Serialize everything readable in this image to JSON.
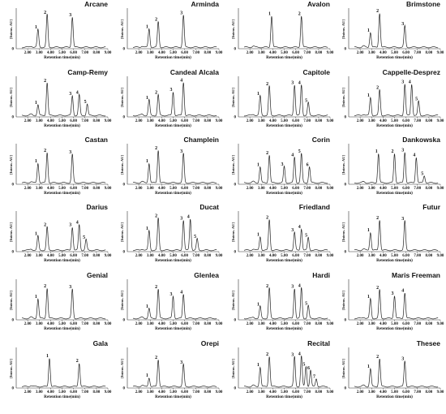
{
  "chart_data": {
    "type": "line",
    "xlabel": "Retention time(min)",
    "ylabel": "[Intens. AU]",
    "xlim": [
      1,
      9
    ],
    "xticks": [
      "2.00",
      "3.00",
      "4.00",
      "5.00",
      "6.00",
      "7.00",
      "8.00",
      "9.00"
    ],
    "yticks": [
      "0"
    ],
    "panels": [
      {
        "title": "Arcane",
        "peaks": [
          {
            "label": "1",
            "x": 2.9,
            "h": 0.5
          },
          {
            "label": "2",
            "x": 3.7,
            "h": 0.92
          },
          {
            "label": "3",
            "x": 5.9,
            "h": 0.85
          }
        ]
      },
      {
        "title": "Arminda",
        "peaks": [
          {
            "label": "1",
            "x": 2.9,
            "h": 0.52
          },
          {
            "label": "2",
            "x": 3.7,
            "h": 0.72
          },
          {
            "label": "3",
            "x": 5.9,
            "h": 0.9
          }
        ]
      },
      {
        "title": "Avalon",
        "peaks": [
          {
            "label": "1",
            "x": 3.9,
            "h": 0.88
          },
          {
            "label": "2",
            "x": 6.5,
            "h": 0.88
          }
        ]
      },
      {
        "title": "Brimstone",
        "peaks": [
          {
            "label": "1",
            "x": 2.9,
            "h": 0.42
          },
          {
            "label": "2",
            "x": 3.7,
            "h": 0.96
          },
          {
            "label": "3",
            "x": 5.9,
            "h": 0.6
          }
        ]
      },
      {
        "title": "Camp-Remy",
        "peaks": [
          {
            "label": "1",
            "x": 2.9,
            "h": 0.3
          },
          {
            "label": "2",
            "x": 3.7,
            "h": 0.92
          },
          {
            "label": "3",
            "x": 5.9,
            "h": 0.55
          },
          {
            "label": "4",
            "x": 6.5,
            "h": 0.58
          },
          {
            "label": "5",
            "x": 7.2,
            "h": 0.32
          }
        ]
      },
      {
        "title": "Candeal Alcala",
        "peaks": [
          {
            "label": "1",
            "x": 2.9,
            "h": 0.44
          },
          {
            "label": "2",
            "x": 3.7,
            "h": 0.58
          },
          {
            "label": "3",
            "x": 5.0,
            "h": 0.66
          },
          {
            "label": "4",
            "x": 5.9,
            "h": 0.93
          }
        ]
      },
      {
        "title": "Capitole",
        "peaks": [
          {
            "label": "1",
            "x": 2.9,
            "h": 0.55
          },
          {
            "label": "2",
            "x": 3.7,
            "h": 0.82
          },
          {
            "label": "3",
            "x": 5.9,
            "h": 0.86
          },
          {
            "label": "4",
            "x": 6.5,
            "h": 0.86
          },
          {
            "label": "5",
            "x": 7.1,
            "h": 0.36
          }
        ]
      },
      {
        "title": "Cappelle-Desprez",
        "peaks": [
          {
            "label": "1",
            "x": 2.9,
            "h": 0.5
          },
          {
            "label": "2",
            "x": 3.7,
            "h": 0.72
          },
          {
            "label": "3",
            "x": 5.9,
            "h": 0.88
          },
          {
            "label": "4",
            "x": 6.5,
            "h": 0.88
          },
          {
            "label": "5",
            "x": 7.1,
            "h": 0.4
          }
        ]
      },
      {
        "title": "Castan",
        "peaks": [
          {
            "label": "1",
            "x": 2.9,
            "h": 0.55
          },
          {
            "label": "2",
            "x": 3.7,
            "h": 0.85
          },
          {
            "label": "3",
            "x": 5.9,
            "h": 0.8
          }
        ]
      },
      {
        "title": "Champlein",
        "peaks": [
          {
            "label": "1",
            "x": 2.9,
            "h": 0.55
          },
          {
            "label": "2",
            "x": 3.7,
            "h": 0.92
          },
          {
            "label": "3",
            "x": 5.9,
            "h": 0.82
          }
        ]
      },
      {
        "title": "Corin",
        "peaks": [
          {
            "label": "1",
            "x": 2.9,
            "h": 0.45
          },
          {
            "label": "2",
            "x": 3.7,
            "h": 0.78
          },
          {
            "label": "3",
            "x": 5.0,
            "h": 0.46
          },
          {
            "label": "4",
            "x": 5.9,
            "h": 0.72
          },
          {
            "label": "5",
            "x": 6.5,
            "h": 0.82
          },
          {
            "label": "6",
            "x": 7.2,
            "h": 0.45
          }
        ]
      },
      {
        "title": "Dankowska",
        "peaks": [
          {
            "label": "1",
            "x": 3.6,
            "h": 0.82
          },
          {
            "label": "2",
            "x": 5.0,
            "h": 0.82
          },
          {
            "label": "3",
            "x": 5.9,
            "h": 0.86
          },
          {
            "label": "4",
            "x": 6.9,
            "h": 0.72
          },
          {
            "label": "5",
            "x": 7.6,
            "h": 0.2
          }
        ]
      },
      {
        "title": "Darius",
        "peaks": [
          {
            "label": "1",
            "x": 2.9,
            "h": 0.4
          },
          {
            "label": "2",
            "x": 3.7,
            "h": 0.65
          },
          {
            "label": "3",
            "x": 5.9,
            "h": 0.65
          },
          {
            "label": "4",
            "x": 6.5,
            "h": 0.72
          },
          {
            "label": "5",
            "x": 7.1,
            "h": 0.3
          }
        ]
      },
      {
        "title": "Ducat",
        "peaks": [
          {
            "label": "1",
            "x": 2.9,
            "h": 0.55
          },
          {
            "label": "2",
            "x": 3.7,
            "h": 0.9
          },
          {
            "label": "3",
            "x": 5.9,
            "h": 0.84
          },
          {
            "label": "4",
            "x": 6.5,
            "h": 0.88
          },
          {
            "label": "5",
            "x": 7.1,
            "h": 0.32
          }
        ]
      },
      {
        "title": "Friedland",
        "peaks": [
          {
            "label": "1",
            "x": 2.9,
            "h": 0.38
          },
          {
            "label": "2",
            "x": 3.7,
            "h": 0.86
          },
          {
            "label": "3",
            "x": 5.9,
            "h": 0.5
          },
          {
            "label": "4",
            "x": 6.5,
            "h": 0.6
          },
          {
            "label": "5",
            "x": 7.1,
            "h": 0.36
          }
        ]
      },
      {
        "title": "Futur",
        "peaks": [
          {
            "label": "1",
            "x": 2.9,
            "h": 0.5
          },
          {
            "label": "2",
            "x": 3.7,
            "h": 0.85
          },
          {
            "label": "3",
            "x": 5.9,
            "h": 0.82
          }
        ]
      },
      {
        "title": "Genial",
        "peaks": [
          {
            "label": "1",
            "x": 2.9,
            "h": 0.55
          },
          {
            "label": "2",
            "x": 3.7,
            "h": 0.85
          },
          {
            "label": "3",
            "x": 5.9,
            "h": 0.82
          }
        ]
      },
      {
        "title": "Glenlea",
        "peaks": [
          {
            "label": "1",
            "x": 2.9,
            "h": 0.28
          },
          {
            "label": "2",
            "x": 3.7,
            "h": 0.82
          },
          {
            "label": "3",
            "x": 5.0,
            "h": 0.62
          },
          {
            "label": "4",
            "x": 5.9,
            "h": 0.68
          }
        ]
      },
      {
        "title": "Hardi",
        "peaks": [
          {
            "label": "1",
            "x": 2.9,
            "h": 0.34
          },
          {
            "label": "2",
            "x": 3.7,
            "h": 0.85
          },
          {
            "label": "3",
            "x": 5.9,
            "h": 0.84
          },
          {
            "label": "4",
            "x": 6.5,
            "h": 0.86
          },
          {
            "label": "5",
            "x": 7.1,
            "h": 0.36
          }
        ]
      },
      {
        "title": "Maris Freeman",
        "peaks": [
          {
            "label": "1",
            "x": 2.9,
            "h": 0.55
          },
          {
            "label": "2",
            "x": 3.7,
            "h": 0.8
          },
          {
            "label": "3",
            "x": 5.0,
            "h": 0.64
          },
          {
            "label": "4",
            "x": 5.9,
            "h": 0.72
          }
        ]
      },
      {
        "title": "Gala",
        "peaks": [
          {
            "label": "1",
            "x": 3.9,
            "h": 0.8
          },
          {
            "label": "2",
            "x": 6.5,
            "h": 0.66
          }
        ]
      },
      {
        "title": "Orepi",
        "peaks": [
          {
            "label": "1",
            "x": 2.9,
            "h": 0.25
          },
          {
            "label": "2",
            "x": 3.7,
            "h": 0.76
          },
          {
            "label": "3",
            "x": 5.9,
            "h": 0.62
          }
        ]
      },
      {
        "title": "Recital",
        "peaks": [
          {
            "label": "1",
            "x": 2.9,
            "h": 0.55
          },
          {
            "label": "2",
            "x": 3.7,
            "h": 0.85
          },
          {
            "label": "3",
            "x": 5.9,
            "h": 0.84
          },
          {
            "label": "4",
            "x": 6.5,
            "h": 0.86
          },
          {
            "label": "5",
            "x": 6.9,
            "h": 0.56
          },
          {
            "label": "6",
            "x": 7.3,
            "h": 0.46
          },
          {
            "label": "7",
            "x": 7.8,
            "h": 0.22
          }
        ]
      },
      {
        "title": "Thesee",
        "peaks": [
          {
            "label": "1",
            "x": 2.9,
            "h": 0.5
          },
          {
            "label": "2",
            "x": 3.7,
            "h": 0.78
          },
          {
            "label": "3",
            "x": 5.9,
            "h": 0.72
          }
        ]
      }
    ]
  }
}
